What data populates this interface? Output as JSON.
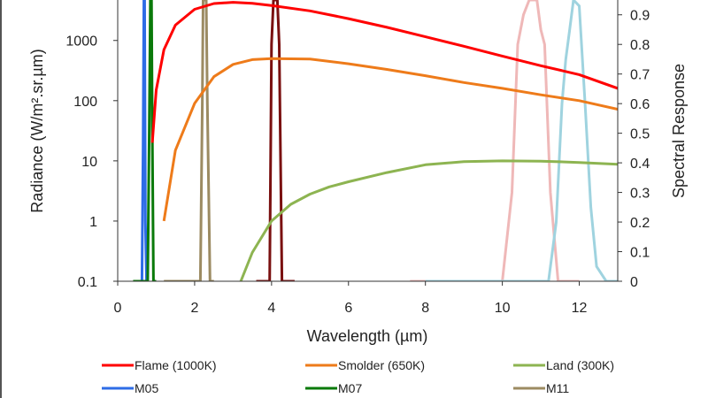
{
  "chart_data": {
    "type": "line",
    "xlabel": "Wavelength (µm)",
    "ylabel_left": "Radiance (W/m².sr.µm)",
    "ylabel_right": "Spectral Response",
    "x_range": [
      0,
      13
    ],
    "x_ticks": [
      0,
      2,
      4,
      6,
      8,
      10,
      12
    ],
    "x_tick_labels": [
      "0",
      "2",
      "4",
      "6",
      "8",
      "10",
      "12"
    ],
    "y_left_scale": "log",
    "y_left_range": [
      0.1,
      4700
    ],
    "y_left_ticks": [
      0.1,
      1,
      10,
      100,
      1000
    ],
    "y_left_tick_labels": [
      "0.1",
      "1",
      "10",
      "100",
      "1000"
    ],
    "y_right_range": [
      0,
      0.95
    ],
    "y_right_ticks": [
      0,
      0.1,
      0.2,
      0.3,
      0.4,
      0.5,
      0.6,
      0.7,
      0.8,
      0.9
    ],
    "y_right_tick_labels": [
      "0",
      "0.1",
      "0.2",
      "0.3",
      "0.4",
      "0.5",
      "0.6",
      "0.7",
      "0.8",
      "0.9"
    ],
    "legend_position": "bottom",
    "grid": false,
    "radiance_series": [
      {
        "name": "Flame (1000K)",
        "color": "#ff0000",
        "points": [
          [
            0.9,
            20
          ],
          [
            1.0,
            150
          ],
          [
            1.2,
            700
          ],
          [
            1.5,
            1800
          ],
          [
            2.0,
            3300
          ],
          [
            2.5,
            4100
          ],
          [
            3.0,
            4300
          ],
          [
            3.5,
            4150
          ],
          [
            4.0,
            3800
          ],
          [
            5.0,
            3100
          ],
          [
            6.0,
            2300
          ],
          [
            7.0,
            1650
          ],
          [
            8.0,
            1150
          ],
          [
            9.0,
            800
          ],
          [
            10.0,
            550
          ],
          [
            11.0,
            380
          ],
          [
            12.0,
            270
          ],
          [
            13.0,
            160
          ]
        ]
      },
      {
        "name": "Smolder (650K)",
        "color": "#ee7b1a",
        "points": [
          [
            1.2,
            1
          ],
          [
            1.5,
            15
          ],
          [
            2.0,
            90
          ],
          [
            2.5,
            250
          ],
          [
            3.0,
            400
          ],
          [
            3.5,
            480
          ],
          [
            4.0,
            500
          ],
          [
            5.0,
            490
          ],
          [
            6.0,
            410
          ],
          [
            7.0,
            330
          ],
          [
            8.0,
            260
          ],
          [
            9.0,
            200
          ],
          [
            10.0,
            160
          ],
          [
            11.0,
            125
          ],
          [
            12.0,
            100
          ],
          [
            13.0,
            72
          ]
        ]
      },
      {
        "name": "Land (300K)",
        "color": "#8db451",
        "points": [
          [
            3.2,
            0.1
          ],
          [
            3.5,
            0.3
          ],
          [
            4.0,
            1
          ],
          [
            4.5,
            1.9
          ],
          [
            5.0,
            2.8
          ],
          [
            5.5,
            3.7
          ],
          [
            6.0,
            4.5
          ],
          [
            7.0,
            6.4
          ],
          [
            8.0,
            8.6
          ],
          [
            9.0,
            9.7
          ],
          [
            10.0,
            10.0
          ],
          [
            11.0,
            9.9
          ],
          [
            12.0,
            9.4
          ],
          [
            13.0,
            8.8
          ]
        ]
      }
    ],
    "response_series": [
      {
        "name": "M05",
        "color": "#2e6ce6",
        "points": [
          [
            0.5,
            0
          ],
          [
            0.63,
            0
          ],
          [
            0.66,
            0.45
          ],
          [
            0.68,
            0.95
          ],
          [
            0.7,
            0.95
          ],
          [
            0.72,
            0.2
          ],
          [
            0.75,
            0
          ]
        ]
      },
      {
        "name": "M07",
        "color": "#0a7a0a",
        "points": [
          [
            0.4,
            0
          ],
          [
            0.78,
            0
          ],
          [
            0.82,
            0.5
          ],
          [
            0.85,
            0.95
          ],
          [
            0.88,
            0.95
          ],
          [
            0.9,
            0.5
          ],
          [
            0.93,
            0
          ],
          [
            1.0,
            0
          ]
        ]
      },
      {
        "name": "M11",
        "color": "#9c8b62",
        "points": [
          [
            1.2,
            0
          ],
          [
            2.15,
            0
          ],
          [
            2.2,
            0.6
          ],
          [
            2.22,
            0.95
          ],
          [
            2.3,
            0.95
          ],
          [
            2.33,
            0.6
          ],
          [
            2.4,
            0
          ],
          [
            2.5,
            0
          ]
        ]
      },
      {
        "name": "",
        "color": "#7a1010",
        "points": [
          [
            3.6,
            0
          ],
          [
            3.95,
            0
          ],
          [
            4.0,
            0.8
          ],
          [
            4.05,
            0.95
          ],
          [
            4.15,
            0.95
          ],
          [
            4.2,
            0.8
          ],
          [
            4.27,
            0
          ],
          [
            4.6,
            0
          ]
        ]
      },
      {
        "name": "",
        "color": "#efb8b8",
        "points": [
          [
            7.6,
            0
          ],
          [
            10.0,
            0
          ],
          [
            10.25,
            0.3
          ],
          [
            10.4,
            0.8
          ],
          [
            10.55,
            0.9
          ],
          [
            10.7,
            0.95
          ],
          [
            10.9,
            0.95
          ],
          [
            11.0,
            0.85
          ],
          [
            11.1,
            0.8
          ],
          [
            11.25,
            0.3
          ],
          [
            11.45,
            0
          ],
          [
            12.0,
            0
          ]
        ]
      },
      {
        "name": "",
        "color": "#9fd3df",
        "points": [
          [
            8.0,
            0
          ],
          [
            11.2,
            0
          ],
          [
            11.4,
            0.2
          ],
          [
            11.55,
            0.6
          ],
          [
            11.65,
            0.75
          ],
          [
            11.75,
            0.85
          ],
          [
            11.85,
            0.95
          ],
          [
            12.0,
            0.93
          ],
          [
            12.15,
            0.6
          ],
          [
            12.3,
            0.25
          ],
          [
            12.45,
            0.05
          ],
          [
            12.7,
            0
          ],
          [
            13.0,
            0
          ]
        ]
      }
    ]
  }
}
